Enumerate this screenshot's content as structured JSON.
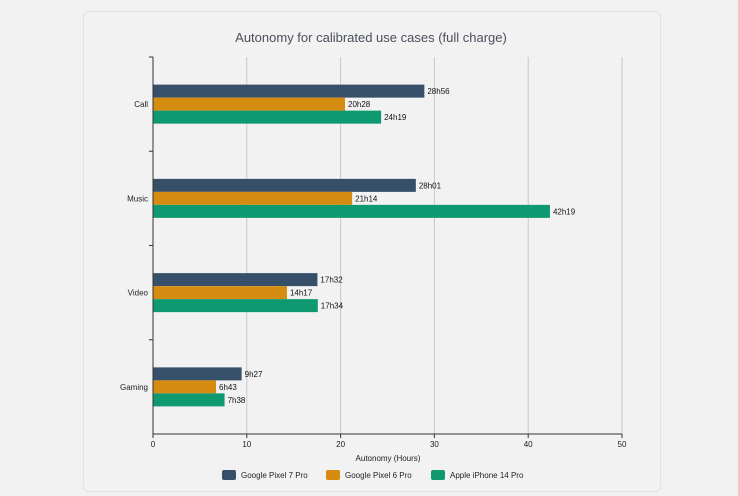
{
  "chart_data": {
    "type": "bar",
    "orientation": "horizontal",
    "title": "Autonomy for calibrated use cases (full charge)",
    "xlabel": "Autonomy (Hours)",
    "ylabel": "",
    "categories": [
      "Call",
      "Music",
      "Video",
      "Gaming"
    ],
    "xlim": [
      0,
      50
    ],
    "xticks": [
      0,
      10,
      20,
      30,
      40,
      50
    ],
    "grid": "vertical",
    "legend": "bottom",
    "series": [
      {
        "name": "Google Pixel 7 Pro",
        "color": "#36506a",
        "values": [
          28.93,
          28.02,
          17.53,
          9.45
        ],
        "labels": [
          "28h56",
          "28h01",
          "17h32",
          "9h27"
        ]
      },
      {
        "name": "Google Pixel 6 Pro",
        "color": "#d68c10",
        "values": [
          20.47,
          21.23,
          14.28,
          6.72
        ],
        "labels": [
          "20h28",
          "21h14",
          "14h17",
          "6h43"
        ]
      },
      {
        "name": "Apple iPhone 14 Pro",
        "color": "#0f9970",
        "values": [
          24.32,
          42.32,
          17.57,
          7.63
        ],
        "labels": [
          "24h19",
          "42h19",
          "17h34",
          "7h38"
        ]
      }
    ]
  }
}
